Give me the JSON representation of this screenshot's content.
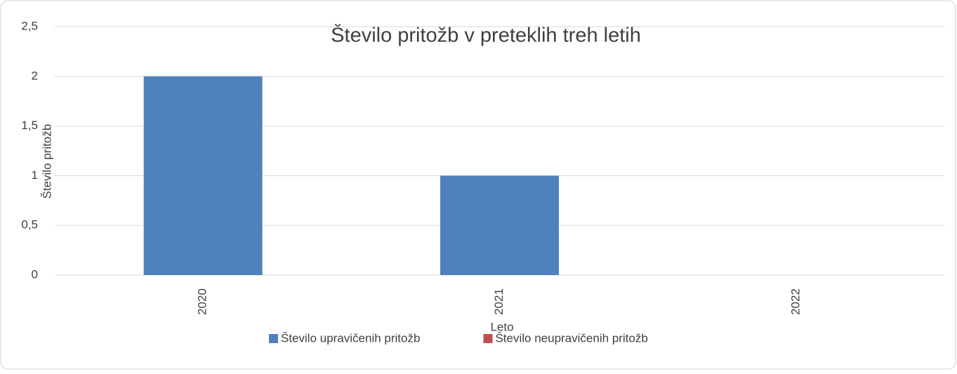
{
  "chart_data": {
    "type": "bar",
    "title": "Število pritožb v preteklih treh letih",
    "x_label": "Leto",
    "y_label": "Število pritožb",
    "categories": [
      "2020",
      "2021",
      "2022"
    ],
    "series": [
      {
        "name": "Število upravičenih pritožb",
        "color": "#4f81bd",
        "values": [
          2,
          1,
          0
        ]
      },
      {
        "name": "Število neupravičenih pritožb",
        "color": "#c0504d",
        "values": [
          0,
          0,
          0
        ]
      }
    ],
    "ylim": [
      0,
      2.5
    ],
    "yticks": [
      0,
      {
        "value": 0.5,
        "label": "0,5"
      },
      1,
      {
        "value": 1.5,
        "label": "1,5"
      },
      2,
      {
        "value": 2.5,
        "label": "2,5"
      }
    ],
    "grid": true,
    "legend": "bottom"
  }
}
